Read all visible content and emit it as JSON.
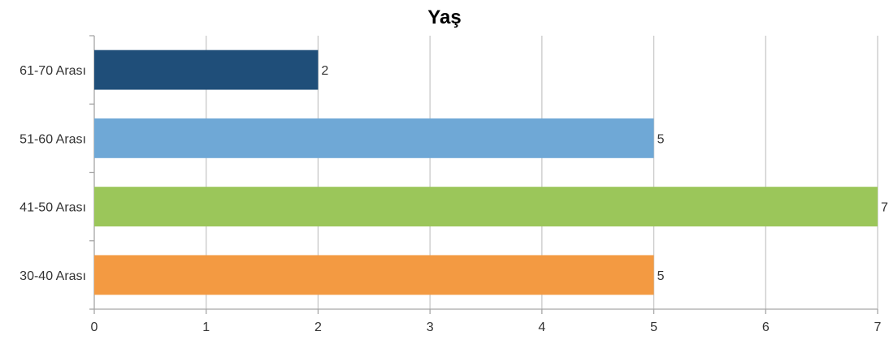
{
  "chart_data": {
    "type": "bar",
    "orientation": "horizontal",
    "title": "Yaş",
    "categories": [
      "61-70 Arası",
      "51-60 Arası",
      "41-50 Arası",
      "30-40 Arası"
    ],
    "values": [
      2,
      5,
      7,
      5
    ],
    "colors": [
      "#1f4e79",
      "#6fa8d6",
      "#9bc65a",
      "#f39a42"
    ],
    "xlim": [
      0,
      7
    ],
    "x_ticks": [
      "0",
      "1",
      "2",
      "3",
      "4",
      "5",
      "6",
      "7"
    ],
    "grid": "vertical",
    "data_labels": true,
    "legend": "none"
  }
}
